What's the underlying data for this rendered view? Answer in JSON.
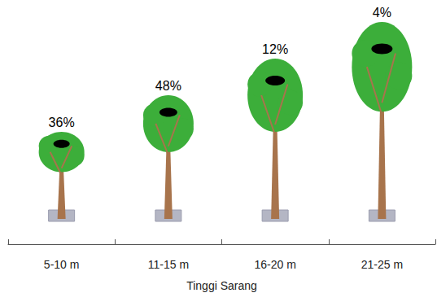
{
  "chart_data": {
    "type": "pictorial",
    "categories": [
      "5-10 m",
      "11-15 m",
      "16-20 m",
      "21-25 m"
    ],
    "values": [
      36,
      48,
      12,
      4
    ],
    "value_labels": [
      "36%",
      "48%",
      "12%",
      "4%"
    ],
    "data_labels": true,
    "xlabel": "Tinggi Sarang",
    "tick_labels": "x",
    "color": "#3cae3a"
  }
}
